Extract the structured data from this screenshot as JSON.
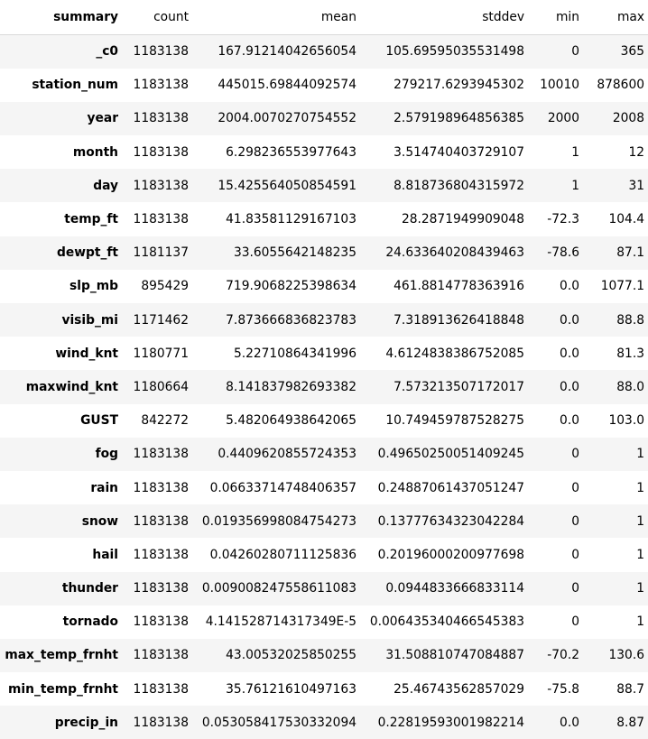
{
  "table": {
    "columns": [
      "summary",
      "count",
      "mean",
      "stddev",
      "min",
      "max"
    ],
    "rows": [
      [
        "_c0",
        "1183138",
        "167.91214042656054",
        "105.69595035531498",
        "0",
        "365"
      ],
      [
        "station_num",
        "1183138",
        "445015.69844092574",
        "279217.6293945302",
        "10010",
        "878600"
      ],
      [
        "year",
        "1183138",
        "2004.0070270754552",
        "2.579198964856385",
        "2000",
        "2008"
      ],
      [
        "month",
        "1183138",
        "6.298236553977643",
        "3.514740403729107",
        "1",
        "12"
      ],
      [
        "day",
        "1183138",
        "15.425564050854591",
        "8.818736804315972",
        "1",
        "31"
      ],
      [
        "temp_ft",
        "1183138",
        "41.83581129167103",
        "28.2871949909048",
        "-72.3",
        "104.4"
      ],
      [
        "dewpt_ft",
        "1181137",
        "33.6055642148235",
        "24.633640208439463",
        "-78.6",
        "87.1"
      ],
      [
        "slp_mb",
        "895429",
        "719.9068225398634",
        "461.8814778363916",
        "0.0",
        "1077.1"
      ],
      [
        "visib_mi",
        "1171462",
        "7.873666836823783",
        "7.318913626418848",
        "0.0",
        "88.8"
      ],
      [
        "wind_knt",
        "1180771",
        "5.22710864341996",
        "4.6124838386752085",
        "0.0",
        "81.3"
      ],
      [
        "maxwind_knt",
        "1180664",
        "8.141837982693382",
        "7.573213507172017",
        "0.0",
        "88.0"
      ],
      [
        "GUST",
        "842272",
        "5.482064938642065",
        "10.749459787528275",
        "0.0",
        "103.0"
      ],
      [
        "fog",
        "1183138",
        "0.4409620855724353",
        "0.49650250051409245",
        "0",
        "1"
      ],
      [
        "rain",
        "1183138",
        "0.06633714748406357",
        "0.24887061437051247",
        "0",
        "1"
      ],
      [
        "snow",
        "1183138",
        "0.019356998084754273",
        "0.13777634323042284",
        "0",
        "1"
      ],
      [
        "hail",
        "1183138",
        "0.04260280711125836",
        "0.20196000200977698",
        "0",
        "1"
      ],
      [
        "thunder",
        "1183138",
        "0.009008247558611083",
        "0.0944833666833114",
        "0",
        "1"
      ],
      [
        "tornado",
        "1183138",
        "4.141528714317349E-5",
        "0.006435340466545383",
        "0",
        "1"
      ],
      [
        "max_temp_frnht",
        "1183138",
        "43.00532025850255",
        "31.508810747084887",
        "-70.2",
        "130.6"
      ],
      [
        "min_temp_frnht",
        "1183138",
        "35.76121610497163",
        "25.46743562857029",
        "-75.8",
        "88.7"
      ],
      [
        "precip_in",
        "1183138",
        "0.053058417530332094",
        "0.22819593001982214",
        "0.0",
        "8.87"
      ]
    ]
  }
}
